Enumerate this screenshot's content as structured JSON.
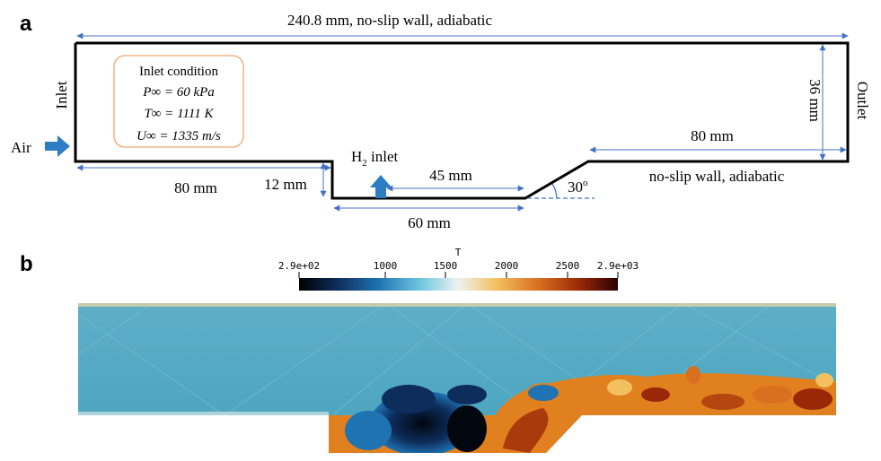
{
  "panel_a": {
    "label": "a",
    "top_dim": "240.8 mm, no-slip wall, adiabatic",
    "inlet": "Inlet",
    "outlet": "Outlet",
    "air": "Air",
    "height_dim": "36 mm",
    "inlet_box": {
      "title": "Inlet condition",
      "lines": [
        "P∞ = 60 kPa",
        "T∞ = 1111 K",
        "U∞ = 1335 m/s"
      ]
    },
    "left_len": "80 mm",
    "step_depth": "12 mm",
    "h2_inlet": "H",
    "h2_sub": "2",
    "h2_suffix": " inlet",
    "h2_offset": "45 mm",
    "cavity_len": "60 mm",
    "ramp_angle": "30",
    "ramp_angle_deg": "o",
    "right_len": "80 mm",
    "bottom_wall": "no-slip wall, adiabatic"
  },
  "panel_b": {
    "label": "b",
    "colorbar_title": "T",
    "colorbar_ticks": [
      "2.9e+02",
      "1000",
      "1500",
      "2000",
      "2500",
      "2.9e+03"
    ],
    "colormap": [
      "#000000",
      "#0d2d5c",
      "#1f73b3",
      "#6ec6e0",
      "#eef2ef",
      "#f3c060",
      "#d87020",
      "#9a2808",
      "#2a0000"
    ],
    "freestream_color": "#4aa5bf",
    "flame_color": "#e0801e"
  }
}
